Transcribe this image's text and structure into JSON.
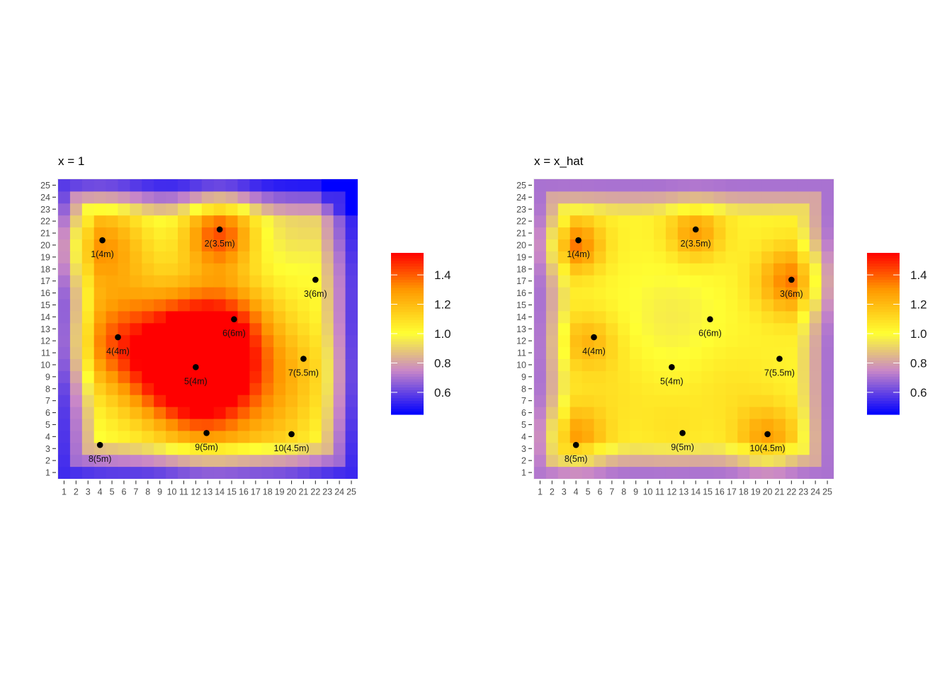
{
  "chart_data": [
    {
      "type": "heatmap",
      "title": "x = 1",
      "x_ticks": [
        "1",
        "2",
        "3",
        "4",
        "5",
        "6",
        "7",
        "8",
        "9",
        "10",
        "11",
        "12",
        "13",
        "14",
        "15",
        "16",
        "17",
        "18",
        "19",
        "20",
        "21",
        "22",
        "23",
        "24",
        "25"
      ],
      "y_ticks": [
        "1",
        "2",
        "3",
        "4",
        "5",
        "6",
        "7",
        "8",
        "9",
        "10",
        "11",
        "12",
        "13",
        "14",
        "15",
        "16",
        "17",
        "18",
        "19",
        "20",
        "21",
        "22",
        "23",
        "24",
        "25"
      ],
      "xlim": [
        1,
        25
      ],
      "ylim": [
        1,
        25
      ],
      "color_scale": {
        "low": "#0000ff",
        "mid_low": "#c987c8",
        "mid": "#ffff33",
        "high_mid": "#ff9900",
        "high": "#ff0000",
        "range": [
          0.45,
          1.55
        ]
      },
      "legend_ticks": [
        "0.6",
        "0.8",
        "1.0",
        "1.2",
        "1.4"
      ],
      "legend_values": [
        0.6,
        0.8,
        1.0,
        1.2,
        1.4
      ],
      "legend_position": "right",
      "points": [
        {
          "label": "1(4m)",
          "x": 4.2,
          "y": 20.4
        },
        {
          "label": "2(3.5m)",
          "x": 14.0,
          "y": 21.3
        },
        {
          "label": "3(6m)",
          "x": 22.0,
          "y": 17.1
        },
        {
          "label": "4(4m)",
          "x": 5.5,
          "y": 12.3
        },
        {
          "label": "5(4m)",
          "x": 12.0,
          "y": 9.8
        },
        {
          "label": "6(6m)",
          "x": 15.2,
          "y": 13.8
        },
        {
          "label": "7(5.5m)",
          "x": 21.0,
          "y": 10.5
        },
        {
          "label": "8(5m)",
          "x": 4.0,
          "y": 3.3
        },
        {
          "label": "9(5m)",
          "x": 12.9,
          "y": 4.3
        },
        {
          "label": "10(4.5m)",
          "x": 20.0,
          "y": 4.2
        }
      ]
    },
    {
      "type": "heatmap",
      "title": "x = x_hat",
      "x_ticks": [
        "1",
        "2",
        "3",
        "4",
        "5",
        "6",
        "7",
        "8",
        "9",
        "10",
        "11",
        "12",
        "13",
        "14",
        "15",
        "16",
        "17",
        "18",
        "19",
        "20",
        "21",
        "22",
        "23",
        "24",
        "25"
      ],
      "y_ticks": [
        "1",
        "2",
        "3",
        "4",
        "5",
        "6",
        "7",
        "8",
        "9",
        "10",
        "11",
        "12",
        "13",
        "14",
        "15",
        "16",
        "17",
        "18",
        "19",
        "20",
        "21",
        "22",
        "23",
        "24",
        "25"
      ],
      "xlim": [
        1,
        25
      ],
      "ylim": [
        1,
        25
      ],
      "color_scale": {
        "low": "#0000ff",
        "mid_low": "#c987c8",
        "mid": "#ffff33",
        "high_mid": "#ff9900",
        "high": "#ff0000",
        "range": [
          0.45,
          1.55
        ]
      },
      "legend_ticks": [
        "0.6",
        "0.8",
        "1.0",
        "1.2",
        "1.4"
      ],
      "legend_values": [
        0.6,
        0.8,
        1.0,
        1.2,
        1.4
      ],
      "legend_position": "right",
      "points": [
        {
          "label": "1(4m)",
          "x": 4.2,
          "y": 20.4
        },
        {
          "label": "2(3.5m)",
          "x": 14.0,
          "y": 21.3
        },
        {
          "label": "3(6m)",
          "x": 22.0,
          "y": 17.1
        },
        {
          "label": "4(4m)",
          "x": 5.5,
          "y": 12.3
        },
        {
          "label": "5(4m)",
          "x": 12.0,
          "y": 9.8
        },
        {
          "label": "6(6m)",
          "x": 15.2,
          "y": 13.8
        },
        {
          "label": "7(5.5m)",
          "x": 21.0,
          "y": 10.5
        },
        {
          "label": "8(5m)",
          "x": 4.0,
          "y": 3.3
        },
        {
          "label": "9(5m)",
          "x": 12.9,
          "y": 4.3
        },
        {
          "label": "10(4.5m)",
          "x": 20.0,
          "y": 4.2
        }
      ]
    }
  ]
}
